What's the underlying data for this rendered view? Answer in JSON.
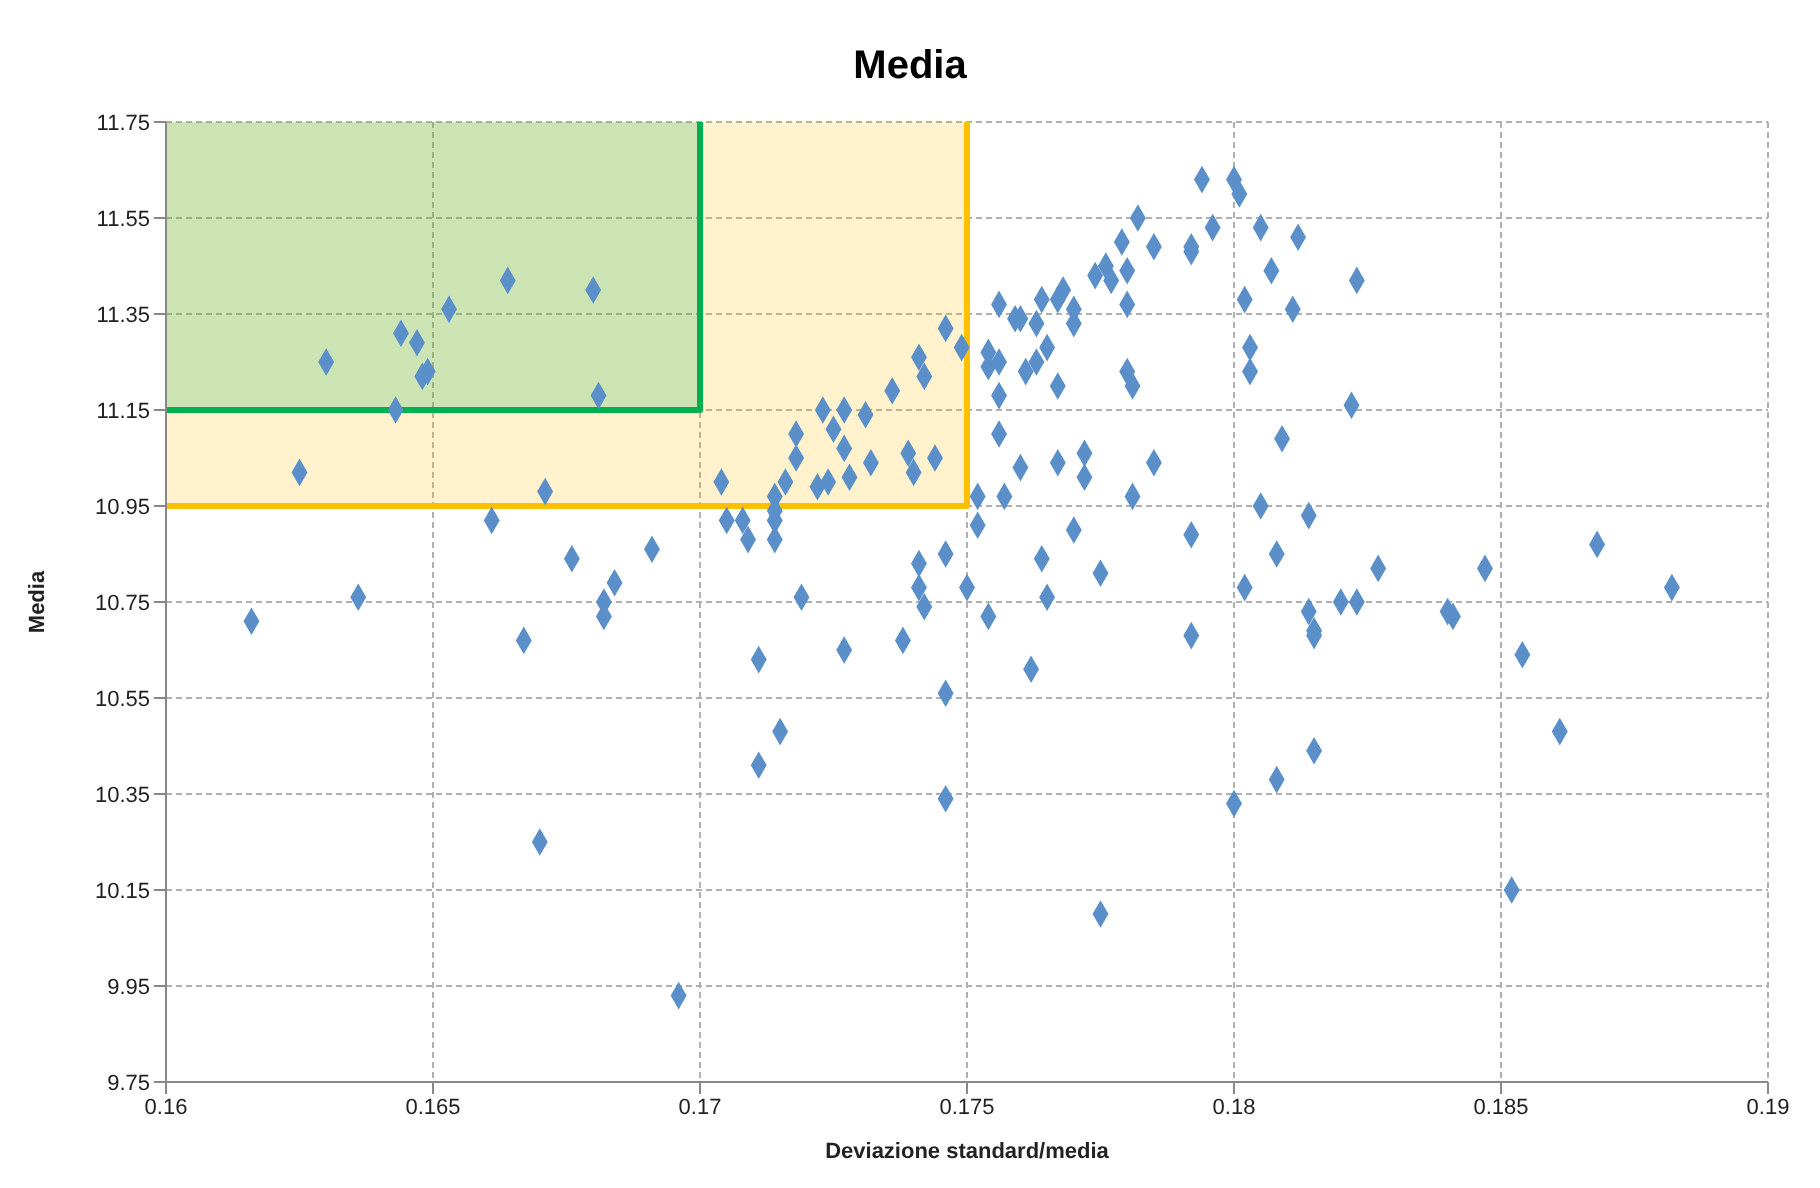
{
  "chart_data": {
    "type": "scatter",
    "title": "Media",
    "xlabel": "Deviazione standard/media",
    "ylabel": "Media",
    "xlim": [
      0.16,
      0.19
    ],
    "xticks": [
      0.16,
      0.165,
      0.17,
      0.175,
      0.18,
      0.185,
      0.19
    ],
    "ylim": [
      9.75,
      11.75
    ],
    "yticks": [
      9.75,
      9.95,
      10.15,
      10.35,
      10.55,
      10.75,
      10.95,
      11.15,
      11.35,
      11.55,
      11.75
    ],
    "grid": true,
    "series": [
      {
        "type": "line",
        "color": "#ffc000",
        "x": [
          0.16,
          0.175,
          0.175
        ],
        "values": [
          10.95,
          10.95,
          11.75
        ]
      },
      {
        "type": "line",
        "color": "#00b050",
        "x": [
          0.16,
          0.17,
          0.17
        ],
        "values": [
          11.15,
          11.15,
          11.75
        ]
      },
      {
        "color": "#5b8fc9",
        "marker": "diamond",
        "x": [
          0.1616,
          0.1625,
          0.163,
          0.1636,
          0.1643,
          0.1644,
          0.1647,
          0.1648,
          0.1649,
          0.1653,
          0.1661,
          0.1664,
          0.1667,
          0.167,
          0.1671,
          0.1676,
          0.168,
          0.1681,
          0.1682,
          0.1682,
          0.1684,
          0.1691,
          0.1696,
          0.1704,
          0.1705,
          0.1708,
          0.1709,
          0.1711,
          0.1711,
          0.1714,
          0.1714,
          0.1714,
          0.1714,
          0.1715,
          0.1716,
          0.1718,
          0.1718,
          0.1719,
          0.1722,
          0.1723,
          0.1724,
          0.1725,
          0.1727,
          0.1727,
          0.1727,
          0.1728,
          0.1731,
          0.1732,
          0.1736,
          0.1738,
          0.1739,
          0.174,
          0.1741,
          0.1741,
          0.1741,
          0.1742,
          0.1742,
          0.1744,
          0.1746,
          0.1746,
          0.1746,
          0.1746,
          0.1749,
          0.175,
          0.1752,
          0.1752,
          0.1754,
          0.1754,
          0.1754,
          0.1756,
          0.1756,
          0.1756,
          0.1756,
          0.1757,
          0.1759,
          0.176,
          0.176,
          0.1761,
          0.1762,
          0.1763,
          0.1763,
          0.1764,
          0.1764,
          0.1765,
          0.1765,
          0.1767,
          0.1767,
          0.1767,
          0.1768,
          0.177,
          0.177,
          0.177,
          0.1772,
          0.1772,
          0.1774,
          0.1775,
          0.1775,
          0.1776,
          0.1777,
          0.1779,
          0.178,
          0.178,
          0.178,
          0.1781,
          0.1781,
          0.1782,
          0.1785,
          0.1785,
          0.1792,
          0.1792,
          0.1792,
          0.1792,
          0.1794,
          0.1796,
          0.18,
          0.18,
          0.1801,
          0.1802,
          0.1802,
          0.1803,
          0.1803,
          0.1805,
          0.1805,
          0.1807,
          0.1808,
          0.1808,
          0.1809,
          0.1811,
          0.1812,
          0.1814,
          0.1814,
          0.1815,
          0.1815,
          0.1815,
          0.182,
          0.1822,
          0.1823,
          0.1823,
          0.1827,
          0.184,
          0.1841,
          0.1847,
          0.1852,
          0.1854,
          0.1861,
          0.1868,
          0.1882
        ],
        "values": [
          10.71,
          11.02,
          11.25,
          10.76,
          11.15,
          11.31,
          11.29,
          11.22,
          11.23,
          11.36,
          10.92,
          11.42,
          10.67,
          10.25,
          10.98,
          10.84,
          11.4,
          11.18,
          10.72,
          10.75,
          10.79,
          10.86,
          9.93,
          11.0,
          10.92,
          10.92,
          10.88,
          10.41,
          10.63,
          10.97,
          10.94,
          10.92,
          10.88,
          10.48,
          11.0,
          11.1,
          11.05,
          10.76,
          10.99,
          11.15,
          11.0,
          11.11,
          11.15,
          10.65,
          11.07,
          11.01,
          11.14,
          11.04,
          11.19,
          10.67,
          11.06,
          11.02,
          11.26,
          10.83,
          10.78,
          11.22,
          10.74,
          11.05,
          11.32,
          10.34,
          10.85,
          10.56,
          11.28,
          10.78,
          10.91,
          10.97,
          11.27,
          11.24,
          10.72,
          11.37,
          11.25,
          11.18,
          11.1,
          10.97,
          11.34,
          11.03,
          11.34,
          11.23,
          10.61,
          11.33,
          11.25,
          10.84,
          11.38,
          11.28,
          10.76,
          11.2,
          11.04,
          11.38,
          11.4,
          11.36,
          10.9,
          11.33,
          11.06,
          11.01,
          11.43,
          10.1,
          10.81,
          11.45,
          11.42,
          11.5,
          11.37,
          11.44,
          11.23,
          10.97,
          11.2,
          11.55,
          11.04,
          11.49,
          11.49,
          11.48,
          10.68,
          10.89,
          11.63,
          11.53,
          11.63,
          10.33,
          11.6,
          10.78,
          11.38,
          11.28,
          11.23,
          11.53,
          10.95,
          11.44,
          10.85,
          10.38,
          11.09,
          11.36,
          11.51,
          10.93,
          10.73,
          10.69,
          10.68,
          10.44,
          10.75,
          11.16,
          11.42,
          10.75,
          10.82,
          10.73,
          10.72,
          10.82,
          10.15,
          10.64,
          10.48,
          10.87,
          10.78
        ]
      }
    ]
  }
}
